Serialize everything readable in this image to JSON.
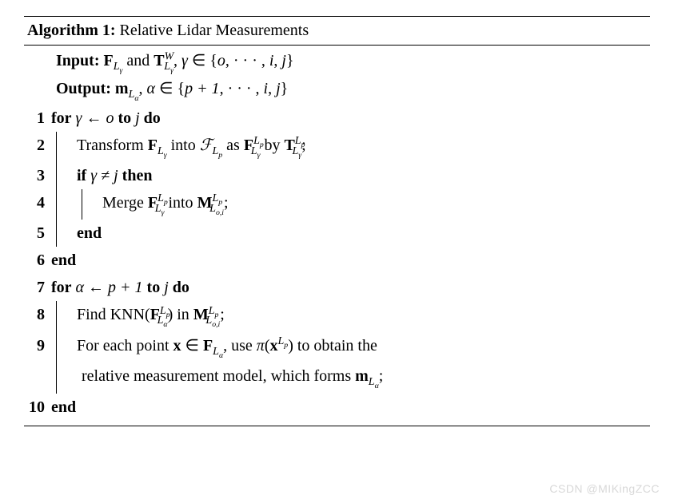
{
  "header": {
    "label": "Algorithm 1:",
    "title": "Relative Lidar Measurements"
  },
  "io": {
    "input_label": "Input:",
    "output_label": "Output:"
  },
  "kw": {
    "for": "for",
    "to": "to",
    "do": "do",
    "if": "if",
    "then": "then",
    "end": "end"
  },
  "text": {
    "transform": "Transform",
    "into": "into",
    "as": "as",
    "by": "by",
    "merge": "Merge",
    "find": "Find",
    "knn": "KNN",
    "in": "in",
    "foreach1": "For each point",
    "foreach2": ", use",
    "foreach3": "to obtain the",
    "foreach4": "relative measurement model, which forms"
  },
  "sym": {
    "F": "F",
    "T": "T",
    "M": "M",
    "m": "m",
    "x": "x",
    "Lg": "L",
    "gamma": "γ",
    "alpha": "α",
    "pi": "π",
    "W": "W",
    "o": "o",
    "i": "i",
    "j": "j",
    "p": "p",
    "p1": "p + 1",
    "neq": "≠",
    "in": "∈",
    "arrow": "←",
    "dots": "· · ·",
    "oi": "o,i"
  },
  "linenos": {
    "l1": "1",
    "l2": "2",
    "l3": "3",
    "l4": "4",
    "l5": "5",
    "l6": "6",
    "l7": "7",
    "l8": "8",
    "l9": "9",
    "l10": "10"
  },
  "watermark": "CSDN @MIKingZCC"
}
